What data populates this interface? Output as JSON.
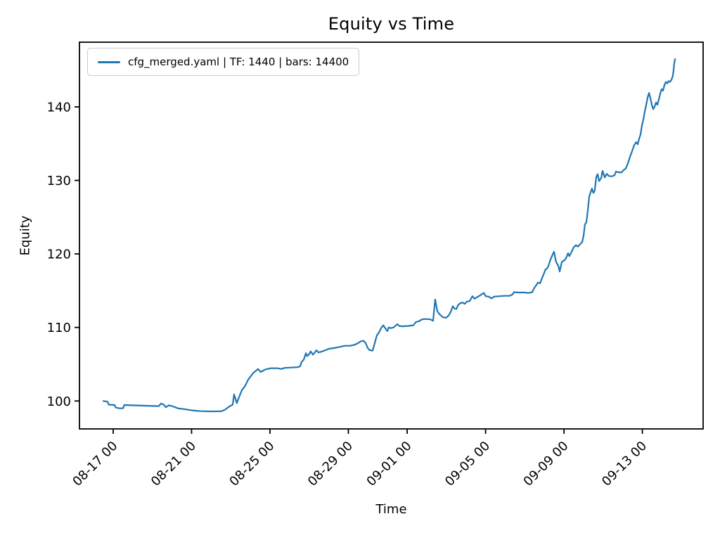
{
  "figure": {
    "background": "#ffffff",
    "frame_color": "#000000",
    "tick_color": "#000000"
  },
  "chart_data": {
    "type": "line",
    "title": "Equity vs Time",
    "xlabel": "Time",
    "ylabel": "Equity",
    "grid": false,
    "legend": {
      "position": "upper left",
      "entries": [
        {
          "label": "cfg_merged.yaml | TF: 1440 | bars: 14400",
          "color": "#1f77b4"
        }
      ]
    },
    "x_axis": {
      "unit": "days since 08-17 00:00",
      "lim": [
        -1.72,
        30.1
      ],
      "ticks": [
        {
          "d": 0,
          "label": "08-17 00"
        },
        {
          "d": 4,
          "label": "08-21 00"
        },
        {
          "d": 8,
          "label": "08-25 00"
        },
        {
          "d": 12,
          "label": "08-29 00"
        },
        {
          "d": 15,
          "label": "09-01 00"
        },
        {
          "d": 19,
          "label": "09-05 00"
        },
        {
          "d": 23,
          "label": "09-09 00"
        },
        {
          "d": 27,
          "label": "09-13 00"
        }
      ]
    },
    "y_axis": {
      "lim": [
        96.2,
        148.8
      ],
      "ticks": [
        100,
        110,
        120,
        130,
        140
      ]
    },
    "series": [
      {
        "name": "cfg_merged.yaml | TF: 1440 | bars: 14400",
        "color": "#1f77b4",
        "points": [
          [
            -0.5,
            100.0
          ],
          [
            -0.39,
            99.95
          ],
          [
            -0.29,
            99.9
          ],
          [
            -0.22,
            99.5
          ],
          [
            0.07,
            99.45
          ],
          [
            0.14,
            99.1
          ],
          [
            0.32,
            99.0
          ],
          [
            0.5,
            99.0
          ],
          [
            0.57,
            99.45
          ],
          [
            1.04,
            99.4
          ],
          [
            1.76,
            99.35
          ],
          [
            2.33,
            99.3
          ],
          [
            2.44,
            99.65
          ],
          [
            2.58,
            99.5
          ],
          [
            2.69,
            99.15
          ],
          [
            2.83,
            99.4
          ],
          [
            3.01,
            99.3
          ],
          [
            3.3,
            99.0
          ],
          [
            3.73,
            98.85
          ],
          [
            4.09,
            98.7
          ],
          [
            4.45,
            98.62
          ],
          [
            4.99,
            98.58
          ],
          [
            5.52,
            98.6
          ],
          [
            5.7,
            98.8
          ],
          [
            5.95,
            99.3
          ],
          [
            6.1,
            99.5
          ],
          [
            6.17,
            100.9
          ],
          [
            6.24,
            100.3
          ],
          [
            6.31,
            99.7
          ],
          [
            6.42,
            100.5
          ],
          [
            6.57,
            101.5
          ],
          [
            6.67,
            101.8
          ],
          [
            6.78,
            102.3
          ],
          [
            6.89,
            102.9
          ],
          [
            7.0,
            103.3
          ],
          [
            7.14,
            103.8
          ],
          [
            7.28,
            104.1
          ],
          [
            7.39,
            104.35
          ],
          [
            7.53,
            103.95
          ],
          [
            7.64,
            104.1
          ],
          [
            7.78,
            104.3
          ],
          [
            8.04,
            104.45
          ],
          [
            8.39,
            104.45
          ],
          [
            8.57,
            104.35
          ],
          [
            8.75,
            104.5
          ],
          [
            9.11,
            104.55
          ],
          [
            9.4,
            104.6
          ],
          [
            9.54,
            104.7
          ],
          [
            9.61,
            105.3
          ],
          [
            9.72,
            105.6
          ],
          [
            9.83,
            106.5
          ],
          [
            9.9,
            106.1
          ],
          [
            10.01,
            106.4
          ],
          [
            10.08,
            106.75
          ],
          [
            10.19,
            106.3
          ],
          [
            10.29,
            106.6
          ],
          [
            10.37,
            106.9
          ],
          [
            10.47,
            106.6
          ],
          [
            10.62,
            106.7
          ],
          [
            10.83,
            106.9
          ],
          [
            11.01,
            107.1
          ],
          [
            11.26,
            107.2
          ],
          [
            11.55,
            107.35
          ],
          [
            11.8,
            107.5
          ],
          [
            12.05,
            107.5
          ],
          [
            12.27,
            107.6
          ],
          [
            12.45,
            107.8
          ],
          [
            12.63,
            108.1
          ],
          [
            12.77,
            108.2
          ],
          [
            12.88,
            107.9
          ],
          [
            12.99,
            107.2
          ],
          [
            13.09,
            106.9
          ],
          [
            13.24,
            106.85
          ],
          [
            13.34,
            107.8
          ],
          [
            13.45,
            108.9
          ],
          [
            13.56,
            109.3
          ],
          [
            13.67,
            109.9
          ],
          [
            13.78,
            110.3
          ],
          [
            13.88,
            109.9
          ],
          [
            13.99,
            109.5
          ],
          [
            14.06,
            110.0
          ],
          [
            14.17,
            109.9
          ],
          [
            14.31,
            110.0
          ],
          [
            14.49,
            110.45
          ],
          [
            14.6,
            110.2
          ],
          [
            14.74,
            110.15
          ],
          [
            15.03,
            110.2
          ],
          [
            15.32,
            110.3
          ],
          [
            15.43,
            110.7
          ],
          [
            15.64,
            110.9
          ],
          [
            15.75,
            111.1
          ],
          [
            15.96,
            111.15
          ],
          [
            16.18,
            111.1
          ],
          [
            16.32,
            110.9
          ],
          [
            16.43,
            113.8
          ],
          [
            16.54,
            112.2
          ],
          [
            16.65,
            111.8
          ],
          [
            16.82,
            111.4
          ],
          [
            16.97,
            111.3
          ],
          [
            17.11,
            111.6
          ],
          [
            17.22,
            112.1
          ],
          [
            17.33,
            112.9
          ],
          [
            17.4,
            112.6
          ],
          [
            17.51,
            112.5
          ],
          [
            17.61,
            113.1
          ],
          [
            17.72,
            113.3
          ],
          [
            17.83,
            113.4
          ],
          [
            17.94,
            113.2
          ],
          [
            18.04,
            113.5
          ],
          [
            18.19,
            113.6
          ],
          [
            18.33,
            114.25
          ],
          [
            18.44,
            113.9
          ],
          [
            18.55,
            114.1
          ],
          [
            18.69,
            114.3
          ],
          [
            18.83,
            114.55
          ],
          [
            18.91,
            114.7
          ],
          [
            19.01,
            114.25
          ],
          [
            19.16,
            114.2
          ],
          [
            19.3,
            113.95
          ],
          [
            19.44,
            114.2
          ],
          [
            19.7,
            114.25
          ],
          [
            19.98,
            114.3
          ],
          [
            20.23,
            114.3
          ],
          [
            20.38,
            114.5
          ],
          [
            20.45,
            114.8
          ],
          [
            20.7,
            114.75
          ],
          [
            20.95,
            114.75
          ],
          [
            21.2,
            114.7
          ],
          [
            21.38,
            114.8
          ],
          [
            21.49,
            115.4
          ],
          [
            21.6,
            115.8
          ],
          [
            21.67,
            116.1
          ],
          [
            21.78,
            116.0
          ],
          [
            21.88,
            116.7
          ],
          [
            21.99,
            117.4
          ],
          [
            22.06,
            117.9
          ],
          [
            22.13,
            118.0
          ],
          [
            22.21,
            118.4
          ],
          [
            22.31,
            119.2
          ],
          [
            22.42,
            119.9
          ],
          [
            22.49,
            120.3
          ],
          [
            22.6,
            118.9
          ],
          [
            22.71,
            118.4
          ],
          [
            22.78,
            117.6
          ],
          [
            22.89,
            118.9
          ],
          [
            23.0,
            119.1
          ],
          [
            23.1,
            119.4
          ],
          [
            23.21,
            120.1
          ],
          [
            23.28,
            119.7
          ],
          [
            23.39,
            120.3
          ],
          [
            23.5,
            120.9
          ],
          [
            23.61,
            121.2
          ],
          [
            23.71,
            121.0
          ],
          [
            23.82,
            121.3
          ],
          [
            23.93,
            121.6
          ],
          [
            24.0,
            122.5
          ],
          [
            24.07,
            124.0
          ],
          [
            24.14,
            124.3
          ],
          [
            24.22,
            126.0
          ],
          [
            24.29,
            127.8
          ],
          [
            24.36,
            128.4
          ],
          [
            24.43,
            128.9
          ],
          [
            24.5,
            128.3
          ],
          [
            24.57,
            128.6
          ],
          [
            24.65,
            130.5
          ],
          [
            24.72,
            130.85
          ],
          [
            24.79,
            129.9
          ],
          [
            24.9,
            130.3
          ],
          [
            24.97,
            131.3
          ],
          [
            25.08,
            130.4
          ],
          [
            25.18,
            130.9
          ],
          [
            25.29,
            130.6
          ],
          [
            25.43,
            130.55
          ],
          [
            25.58,
            130.7
          ],
          [
            25.65,
            131.2
          ],
          [
            25.79,
            131.1
          ],
          [
            25.94,
            131.1
          ],
          [
            26.04,
            131.4
          ],
          [
            26.15,
            131.6
          ],
          [
            26.26,
            132.3
          ],
          [
            26.37,
            133.2
          ],
          [
            26.48,
            134.0
          ],
          [
            26.58,
            134.8
          ],
          [
            26.69,
            135.2
          ],
          [
            26.76,
            134.9
          ],
          [
            26.83,
            135.6
          ],
          [
            26.91,
            136.3
          ],
          [
            26.98,
            137.5
          ],
          [
            27.05,
            138.3
          ],
          [
            27.12,
            139.3
          ],
          [
            27.19,
            140.2
          ],
          [
            27.27,
            141.3
          ],
          [
            27.34,
            141.9
          ],
          [
            27.41,
            141.2
          ],
          [
            27.48,
            140.3
          ],
          [
            27.55,
            139.7
          ],
          [
            27.62,
            140.0
          ],
          [
            27.7,
            140.6
          ],
          [
            27.77,
            140.3
          ],
          [
            27.84,
            141.0
          ],
          [
            27.91,
            141.8
          ],
          [
            27.98,
            142.4
          ],
          [
            28.05,
            142.2
          ],
          [
            28.13,
            143.0
          ],
          [
            28.2,
            143.4
          ],
          [
            28.27,
            143.2
          ],
          [
            28.34,
            143.5
          ],
          [
            28.41,
            143.4
          ],
          [
            28.49,
            143.7
          ],
          [
            28.56,
            144.3
          ],
          [
            28.6,
            145.2
          ],
          [
            28.63,
            146.0
          ],
          [
            28.67,
            146.5
          ]
        ]
      }
    ]
  }
}
